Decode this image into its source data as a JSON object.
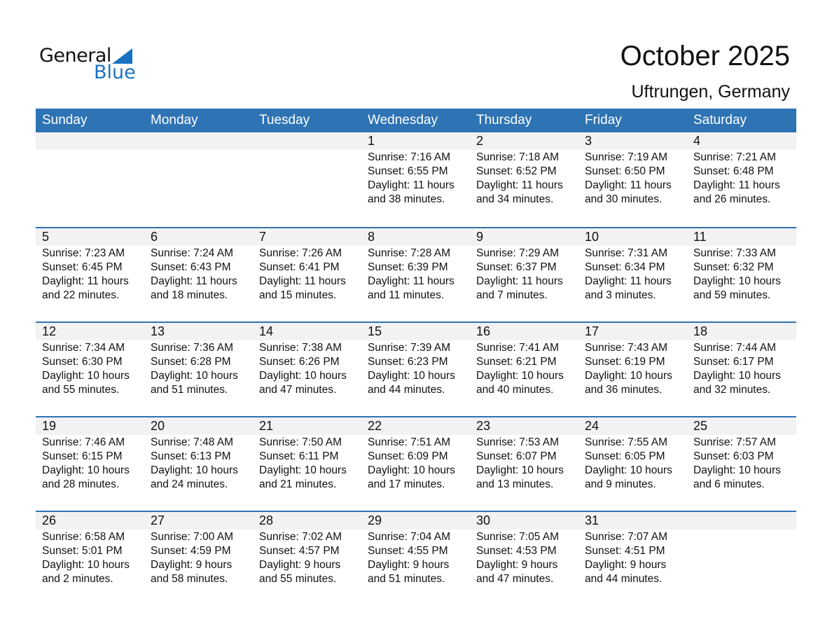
{
  "logo": {
    "general": "General",
    "blue": "Blue"
  },
  "title": "October 2025",
  "location": "Uftrungen, Germany",
  "colors": {
    "accent": "#2e73b4",
    "band": "#f2f2f2"
  },
  "days": [
    "Sunday",
    "Monday",
    "Tuesday",
    "Wednesday",
    "Thursday",
    "Friday",
    "Saturday"
  ],
  "weeks": [
    [
      null,
      null,
      null,
      {
        "d": "1",
        "sr": "Sunrise: 7:16 AM",
        "ss": "Sunset: 6:55 PM",
        "dl": "Daylight: 11 hours",
        "dm": "and 38 minutes."
      },
      {
        "d": "2",
        "sr": "Sunrise: 7:18 AM",
        "ss": "Sunset: 6:52 PM",
        "dl": "Daylight: 11 hours",
        "dm": "and 34 minutes."
      },
      {
        "d": "3",
        "sr": "Sunrise: 7:19 AM",
        "ss": "Sunset: 6:50 PM",
        "dl": "Daylight: 11 hours",
        "dm": "and 30 minutes."
      },
      {
        "d": "4",
        "sr": "Sunrise: 7:21 AM",
        "ss": "Sunset: 6:48 PM",
        "dl": "Daylight: 11 hours",
        "dm": "and 26 minutes."
      }
    ],
    [
      {
        "d": "5",
        "sr": "Sunrise: 7:23 AM",
        "ss": "Sunset: 6:45 PM",
        "dl": "Daylight: 11 hours",
        "dm": "and 22 minutes."
      },
      {
        "d": "6",
        "sr": "Sunrise: 7:24 AM",
        "ss": "Sunset: 6:43 PM",
        "dl": "Daylight: 11 hours",
        "dm": "and 18 minutes."
      },
      {
        "d": "7",
        "sr": "Sunrise: 7:26 AM",
        "ss": "Sunset: 6:41 PM",
        "dl": "Daylight: 11 hours",
        "dm": "and 15 minutes."
      },
      {
        "d": "8",
        "sr": "Sunrise: 7:28 AM",
        "ss": "Sunset: 6:39 PM",
        "dl": "Daylight: 11 hours",
        "dm": "and 11 minutes."
      },
      {
        "d": "9",
        "sr": "Sunrise: 7:29 AM",
        "ss": "Sunset: 6:37 PM",
        "dl": "Daylight: 11 hours",
        "dm": "and 7 minutes."
      },
      {
        "d": "10",
        "sr": "Sunrise: 7:31 AM",
        "ss": "Sunset: 6:34 PM",
        "dl": "Daylight: 11 hours",
        "dm": "and 3 minutes."
      },
      {
        "d": "11",
        "sr": "Sunrise: 7:33 AM",
        "ss": "Sunset: 6:32 PM",
        "dl": "Daylight: 10 hours",
        "dm": "and 59 minutes."
      }
    ],
    [
      {
        "d": "12",
        "sr": "Sunrise: 7:34 AM",
        "ss": "Sunset: 6:30 PM",
        "dl": "Daylight: 10 hours",
        "dm": "and 55 minutes."
      },
      {
        "d": "13",
        "sr": "Sunrise: 7:36 AM",
        "ss": "Sunset: 6:28 PM",
        "dl": "Daylight: 10 hours",
        "dm": "and 51 minutes."
      },
      {
        "d": "14",
        "sr": "Sunrise: 7:38 AM",
        "ss": "Sunset: 6:26 PM",
        "dl": "Daylight: 10 hours",
        "dm": "and 47 minutes."
      },
      {
        "d": "15",
        "sr": "Sunrise: 7:39 AM",
        "ss": "Sunset: 6:23 PM",
        "dl": "Daylight: 10 hours",
        "dm": "and 44 minutes."
      },
      {
        "d": "16",
        "sr": "Sunrise: 7:41 AM",
        "ss": "Sunset: 6:21 PM",
        "dl": "Daylight: 10 hours",
        "dm": "and 40 minutes."
      },
      {
        "d": "17",
        "sr": "Sunrise: 7:43 AM",
        "ss": "Sunset: 6:19 PM",
        "dl": "Daylight: 10 hours",
        "dm": "and 36 minutes."
      },
      {
        "d": "18",
        "sr": "Sunrise: 7:44 AM",
        "ss": "Sunset: 6:17 PM",
        "dl": "Daylight: 10 hours",
        "dm": "and 32 minutes."
      }
    ],
    [
      {
        "d": "19",
        "sr": "Sunrise: 7:46 AM",
        "ss": "Sunset: 6:15 PM",
        "dl": "Daylight: 10 hours",
        "dm": "and 28 minutes."
      },
      {
        "d": "20",
        "sr": "Sunrise: 7:48 AM",
        "ss": "Sunset: 6:13 PM",
        "dl": "Daylight: 10 hours",
        "dm": "and 24 minutes."
      },
      {
        "d": "21",
        "sr": "Sunrise: 7:50 AM",
        "ss": "Sunset: 6:11 PM",
        "dl": "Daylight: 10 hours",
        "dm": "and 21 minutes."
      },
      {
        "d": "22",
        "sr": "Sunrise: 7:51 AM",
        "ss": "Sunset: 6:09 PM",
        "dl": "Daylight: 10 hours",
        "dm": "and 17 minutes."
      },
      {
        "d": "23",
        "sr": "Sunrise: 7:53 AM",
        "ss": "Sunset: 6:07 PM",
        "dl": "Daylight: 10 hours",
        "dm": "and 13 minutes."
      },
      {
        "d": "24",
        "sr": "Sunrise: 7:55 AM",
        "ss": "Sunset: 6:05 PM",
        "dl": "Daylight: 10 hours",
        "dm": "and 9 minutes."
      },
      {
        "d": "25",
        "sr": "Sunrise: 7:57 AM",
        "ss": "Sunset: 6:03 PM",
        "dl": "Daylight: 10 hours",
        "dm": "and 6 minutes."
      }
    ],
    [
      {
        "d": "26",
        "sr": "Sunrise: 6:58 AM",
        "ss": "Sunset: 5:01 PM",
        "dl": "Daylight: 10 hours",
        "dm": "and 2 minutes."
      },
      {
        "d": "27",
        "sr": "Sunrise: 7:00 AM",
        "ss": "Sunset: 4:59 PM",
        "dl": "Daylight: 9 hours",
        "dm": "and 58 minutes."
      },
      {
        "d": "28",
        "sr": "Sunrise: 7:02 AM",
        "ss": "Sunset: 4:57 PM",
        "dl": "Daylight: 9 hours",
        "dm": "and 55 minutes."
      },
      {
        "d": "29",
        "sr": "Sunrise: 7:04 AM",
        "ss": "Sunset: 4:55 PM",
        "dl": "Daylight: 9 hours",
        "dm": "and 51 minutes."
      },
      {
        "d": "30",
        "sr": "Sunrise: 7:05 AM",
        "ss": "Sunset: 4:53 PM",
        "dl": "Daylight: 9 hours",
        "dm": "and 47 minutes."
      },
      {
        "d": "31",
        "sr": "Sunrise: 7:07 AM",
        "ss": "Sunset: 4:51 PM",
        "dl": "Daylight: 9 hours",
        "dm": "and 44 minutes."
      },
      null
    ]
  ]
}
